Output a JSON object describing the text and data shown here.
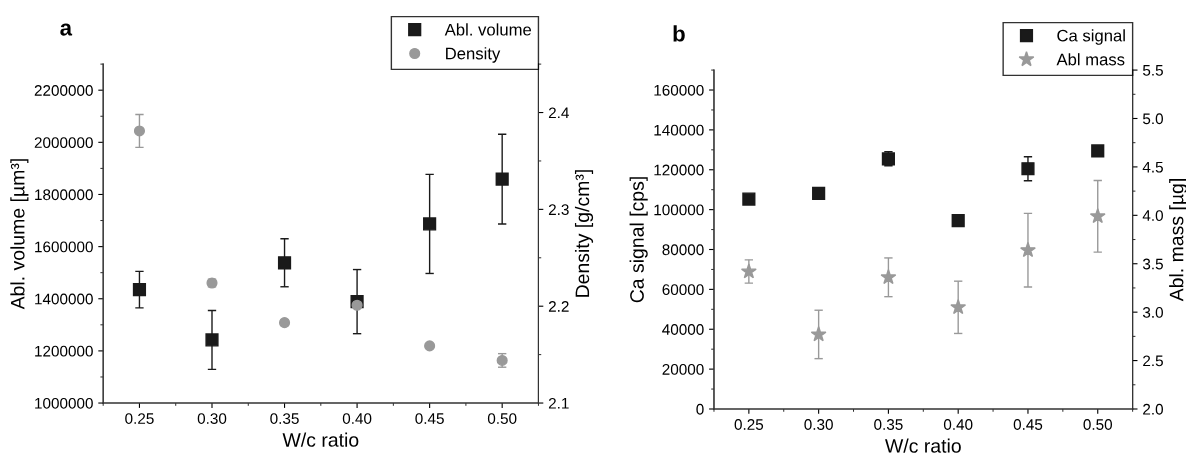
{
  "chart_data": [
    {
      "type": "scatter",
      "title": "a",
      "xlabel": "W/c ratio",
      "ylabel": "Abl. volume [µm³]",
      "y2label": "Density [g/cm³]",
      "x": [
        0.25,
        0.3,
        0.35,
        0.4,
        0.45,
        0.5
      ],
      "xlim": [
        0.225,
        0.525
      ],
      "xticks": [
        {
          "value": 0.25,
          "label": "0.25"
        },
        {
          "value": 0.3,
          "label": "0.30"
        },
        {
          "value": 0.35,
          "label": "0.35"
        },
        {
          "value": 0.4,
          "label": "0.40"
        },
        {
          "value": 0.45,
          "label": "0.45"
        },
        {
          "value": 0.5,
          "label": "0.50"
        }
      ],
      "ylim": [
        1000000,
        2300000
      ],
      "yticks": [
        1000000,
        1200000,
        1400000,
        1600000,
        1800000,
        2000000,
        2200000
      ],
      "y2lim": [
        2.1,
        2.45
      ],
      "y2ticks": [
        2.1,
        2.2,
        2.3,
        2.4
      ],
      "legend": "top right",
      "grid": false,
      "series": [
        {
          "name": "Abl. volume",
          "color": "#1a1a1a",
          "marker": "square",
          "values": [
            1435000,
            1242000,
            1538000,
            1389000,
            1687000,
            1859000
          ],
          "errors": [
            70000,
            113000,
            92000,
            123000,
            190000,
            172000
          ]
        },
        {
          "name": "Density",
          "color": "#999999",
          "marker": "circle",
          "axis": "y2",
          "values": [
            2.381,
            2.224,
            2.183,
            2.201,
            2.159,
            2.144
          ],
          "errors": [
            0.017,
            0.004,
            0.003,
            0.003,
            0.002,
            0.007
          ]
        }
      ]
    },
    {
      "type": "scatter",
      "title": "b",
      "xlabel": "W/c ratio",
      "ylabel": "Ca signal [cps]",
      "y2label": "Abl. mass [µg]",
      "x": [
        0.25,
        0.3,
        0.35,
        0.4,
        0.45,
        0.5
      ],
      "xlim": [
        0.225,
        0.525
      ],
      "xticks": [
        {
          "value": 0.25,
          "label": "0.25"
        },
        {
          "value": 0.3,
          "label": "0.30"
        },
        {
          "value": 0.35,
          "label": "0.35"
        },
        {
          "value": 0.4,
          "label": "0.40"
        },
        {
          "value": 0.45,
          "label": "0.45"
        },
        {
          "value": 0.5,
          "label": "0.50"
        }
      ],
      "ylim": [
        0,
        170000
      ],
      "yticks": [
        0,
        20000,
        40000,
        60000,
        80000,
        100000,
        120000,
        140000,
        160000
      ],
      "y2lim": [
        2.0,
        5.5
      ],
      "y2ticks": [
        {
          "value": 2.0,
          "label": "2.0"
        },
        2.5,
        {
          "value": 3.0,
          "label": "3.0"
        },
        3.5,
        {
          "value": 4.0,
          "label": "4.0"
        },
        4.5,
        {
          "value": 5.0,
          "label": "5.0"
        },
        5.5
      ],
      "legend": "top right",
      "grid": false,
      "series": [
        {
          "name": "Ca signal",
          "color": "#1a1a1a",
          "marker": "square",
          "values": [
            105300,
            108200,
            125500,
            94500,
            120500,
            129500
          ],
          "errors": [
            1500,
            1500,
            3500,
            1000,
            6000,
            2500
          ]
        },
        {
          "name": "Abl mass",
          "color": "#999999",
          "marker": "star",
          "axis": "y2",
          "values": [
            3.42,
            2.77,
            3.36,
            3.05,
            3.64,
            3.99
          ],
          "errors": [
            0.12,
            0.25,
            0.2,
            0.27,
            0.38,
            0.37
          ]
        }
      ]
    }
  ]
}
